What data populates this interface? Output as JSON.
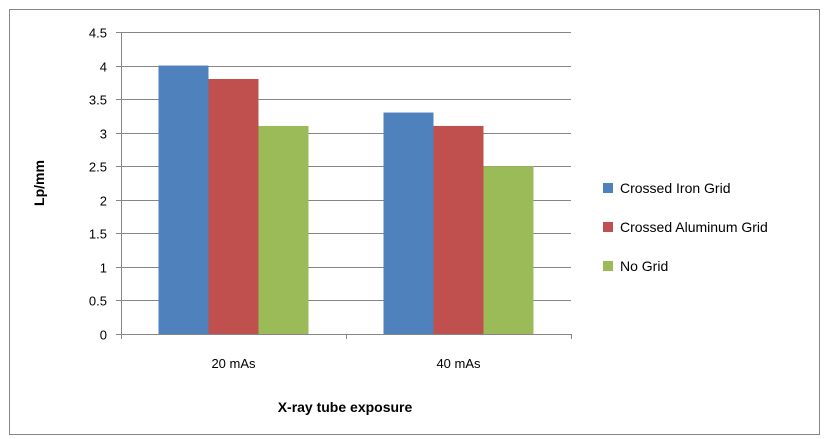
{
  "chart_data": {
    "type": "bar",
    "title": "",
    "xlabel": "X-ray tube exposure",
    "ylabel": "Lp/mm",
    "categories": [
      "20 mAs",
      "40 mAs"
    ],
    "series": [
      {
        "name": "Crossed Iron Grid",
        "color": "#4f81bd",
        "values": [
          4.0,
          3.3
        ]
      },
      {
        "name": "Crossed Aluminum Grid",
        "color": "#c0504d",
        "values": [
          3.8,
          3.1
        ]
      },
      {
        "name": "No Grid",
        "color": "#9bbb59",
        "values": [
          3.1,
          2.5
        ]
      }
    ],
    "ylim": [
      0,
      4.5
    ],
    "yticks": [
      "0",
      "0.5",
      "1",
      "1.5",
      "2",
      "2.5",
      "3",
      "3.5",
      "4",
      "4.5"
    ],
    "grid": true,
    "legend_position": "right"
  }
}
